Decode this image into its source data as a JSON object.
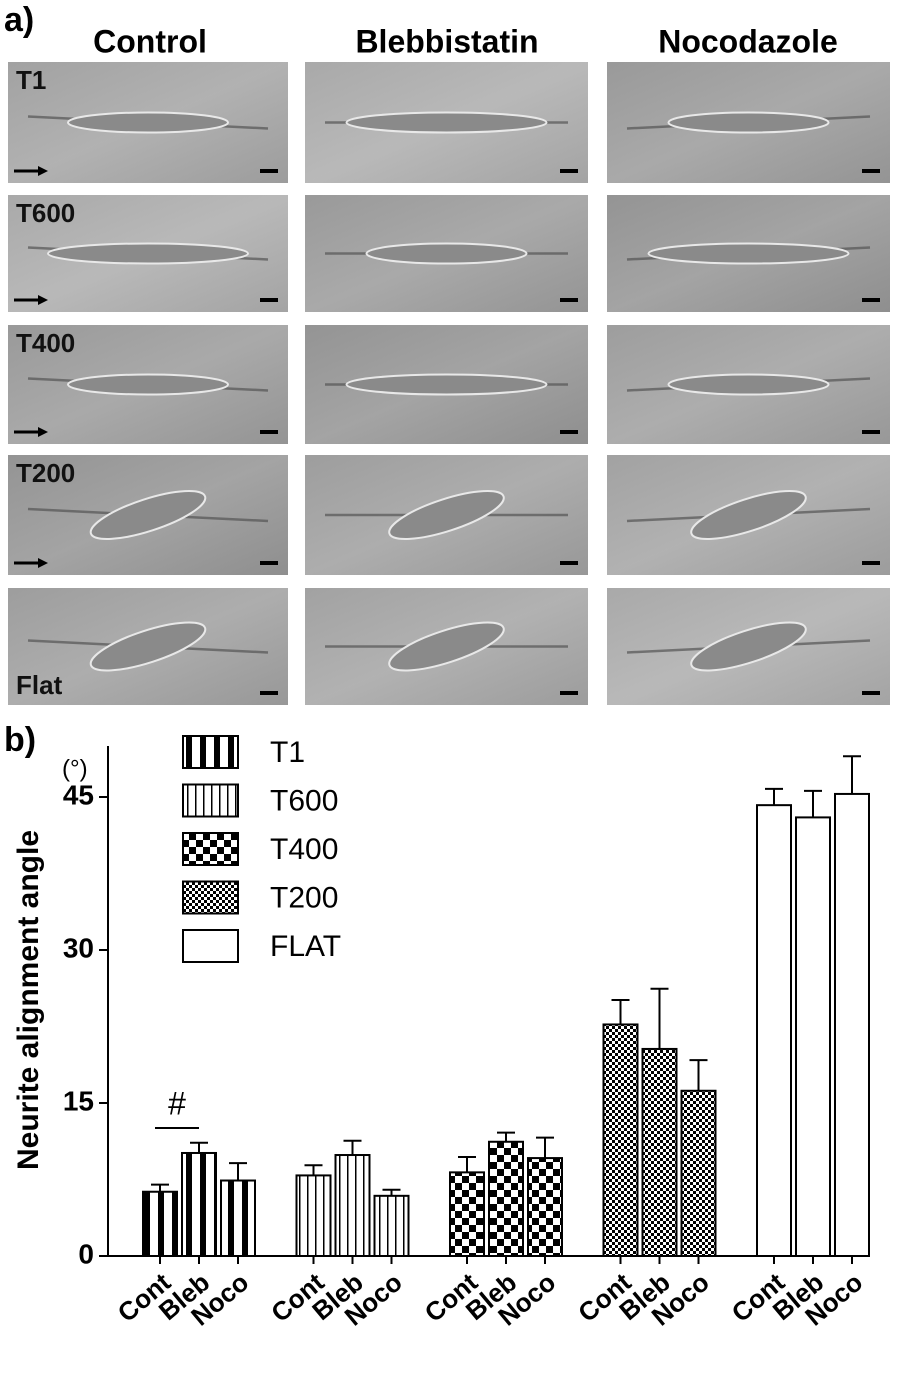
{
  "panel_a": {
    "label": "a)",
    "columns": [
      "Control",
      "Blebbistatin",
      "Nocodazole"
    ],
    "rows": [
      "T1",
      "T600",
      "T400",
      "T200",
      "Flat"
    ]
  },
  "chart_data": {
    "type": "bar",
    "panel_label": "b)",
    "y_label": "Neurite alignment angle",
    "y_unit": "(°)",
    "categories": [
      "Cont",
      "Bleb",
      "Noco"
    ],
    "series": [
      {
        "name": "T1",
        "pattern": "wide-stripes",
        "color": "#000000",
        "values": [
          6.3,
          10.1,
          7.4
        ],
        "errors": [
          0.7,
          1.0,
          1.7
        ]
      },
      {
        "name": "T600",
        "pattern": "thin-stripes",
        "color": "#000000",
        "values": [
          7.9,
          9.9,
          5.9
        ],
        "errors": [
          1.0,
          1.4,
          0.6
        ]
      },
      {
        "name": "T400",
        "pattern": "large-checks",
        "color": "#000000",
        "values": [
          8.2,
          11.2,
          9.6
        ],
        "errors": [
          1.5,
          0.9,
          2.0
        ]
      },
      {
        "name": "T200",
        "pattern": "small-checks",
        "color": "#000000",
        "values": [
          22.7,
          20.3,
          16.2
        ],
        "errors": [
          2.4,
          5.9,
          3.0
        ]
      },
      {
        "name": "FLAT",
        "pattern": "none",
        "color": "#000000",
        "values": [
          44.2,
          43.0,
          45.3
        ],
        "errors": [
          1.6,
          2.6,
          3.7
        ]
      }
    ],
    "annotation": "#",
    "ylim": [
      0,
      50
    ],
    "yticks": [
      0,
      15,
      30,
      45
    ]
  }
}
